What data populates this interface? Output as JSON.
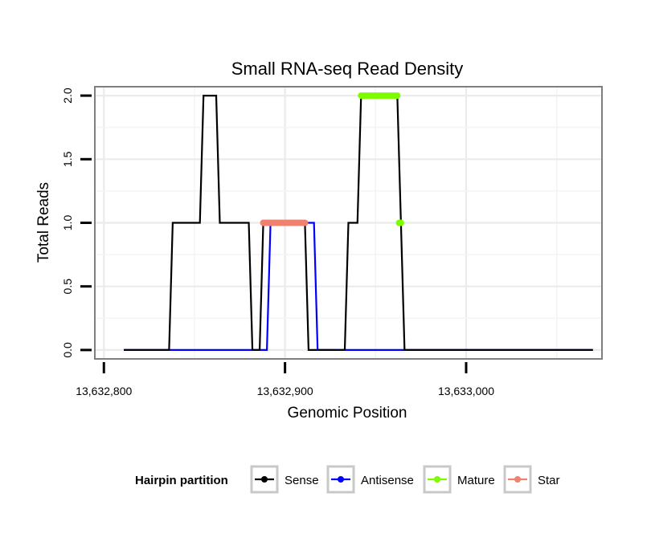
{
  "chart_data": {
    "type": "line",
    "title": "Small RNA-seq Read Density",
    "xlabel": "Genomic Position",
    "ylabel": "Total Reads",
    "xlim": [
      13632795,
      13633075
    ],
    "ylim": [
      -0.07,
      2.07
    ],
    "x_ticks": [
      {
        "value": 13632800,
        "label": "13,632,800"
      },
      {
        "value": 13632900,
        "label": "13,632,900"
      },
      {
        "value": 13633000,
        "label": "13,633,000"
      }
    ],
    "y_ticks": [
      {
        "value": 0,
        "label": "0.0"
      },
      {
        "value": 0.5,
        "label": "0.5"
      },
      {
        "value": 1,
        "label": "1.0"
      },
      {
        "value": 1.5,
        "label": "1.5"
      },
      {
        "value": 2,
        "label": "2.0"
      }
    ],
    "grid": true,
    "legend_position": "bottom",
    "legend_title": "Hairpin partition",
    "series": [
      {
        "name": "Sense",
        "color": "#000000",
        "style": "line",
        "x": [
          13632811,
          13632836,
          13632838,
          13632853,
          13632855,
          13632862,
          13632864,
          13632880,
          13632882,
          13632886,
          13632888,
          13632911,
          13632913,
          13632933,
          13632935,
          13632940,
          13632942,
          13632962,
          13632966,
          13633070
        ],
        "y": [
          0,
          0,
          1,
          1,
          2,
          2,
          1,
          1,
          0,
          0,
          1,
          1,
          0,
          0,
          1,
          1,
          2,
          2,
          0,
          0
        ]
      },
      {
        "name": "Antisense",
        "color": "#0000ff",
        "style": "line",
        "x": [
          13632811,
          13632890,
          13632892,
          13632916,
          13632918,
          13633070
        ],
        "y": [
          0,
          0,
          1,
          1,
          0,
          0
        ]
      },
      {
        "name": "Mature",
        "color": "#7cfc00",
        "style": "points",
        "x": [
          13632942,
          13632943,
          13632944,
          13632945,
          13632946,
          13632947,
          13632948,
          13632949,
          13632950,
          13632951,
          13632952,
          13632953,
          13632954,
          13632955,
          13632956,
          13632957,
          13632958,
          13632959,
          13632960,
          13632961,
          13632962,
          13632963,
          13632964
        ],
        "y": [
          2,
          2,
          2,
          2,
          2,
          2,
          2,
          2,
          2,
          2,
          2,
          2,
          2,
          2,
          2,
          2,
          2,
          2,
          2,
          2,
          2,
          1,
          1
        ]
      },
      {
        "name": "Star",
        "color": "#f08070",
        "style": "points",
        "x": [
          13632888,
          13632889,
          13632890,
          13632891,
          13632892,
          13632893,
          13632894,
          13632895,
          13632896,
          13632897,
          13632898,
          13632899,
          13632900,
          13632901,
          13632902,
          13632903,
          13632904,
          13632905,
          13632906,
          13632907,
          13632908,
          13632909,
          13632910,
          13632911
        ],
        "y": [
          1,
          1,
          1,
          1,
          1,
          1,
          1,
          1,
          1,
          1,
          1,
          1,
          1,
          1,
          1,
          1,
          1,
          1,
          1,
          1,
          1,
          1,
          1,
          1
        ]
      }
    ]
  }
}
